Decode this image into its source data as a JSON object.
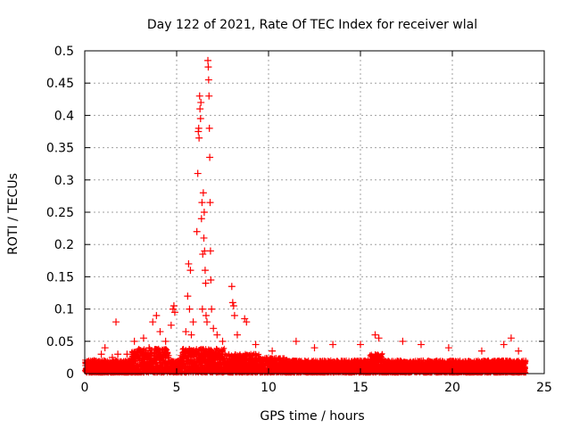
{
  "chart_data": {
    "type": "scatter",
    "title": "Day 122 of 2021, Rate Of TEC Index for receiver wlal",
    "xlabel": "GPS time / hours",
    "ylabel": "ROTI / TECUs",
    "xlim": [
      0,
      25
    ],
    "ylim": [
      0,
      0.5
    ],
    "xticks": [
      0,
      5,
      10,
      15,
      20,
      25
    ],
    "yticks": [
      0,
      0.05,
      0.1,
      0.15,
      0.2,
      0.25,
      0.3,
      0.35,
      0.4,
      0.45,
      0.5
    ],
    "xtick_labels": [
      "0",
      "5",
      "10",
      "15",
      "20",
      "25"
    ],
    "ytick_labels": [
      "0",
      "0.05",
      "0.1",
      "0.15",
      "0.2",
      "0.25",
      "0.3",
      "0.35",
      "0.4",
      "0.45",
      "0.5"
    ],
    "grid": true,
    "marker": "plus",
    "marker_color": "#ff0000",
    "background_band": {
      "x_range": [
        0,
        24
      ],
      "baseline_max": 0.02,
      "description": "dense band of points"
    },
    "series": [
      {
        "name": "ROTI",
        "points": [
          [
            0.2,
            0.015
          ],
          [
            0.5,
            0.02
          ],
          [
            0.9,
            0.03
          ],
          [
            1.1,
            0.04
          ],
          [
            1.5,
            0.025
          ],
          [
            1.7,
            0.08
          ],
          [
            1.8,
            0.03
          ],
          [
            2.3,
            0.03
          ],
          [
            2.7,
            0.05
          ],
          [
            3.2,
            0.055
          ],
          [
            3.5,
            0.04
          ],
          [
            3.7,
            0.08
          ],
          [
            3.9,
            0.09
          ],
          [
            4.1,
            0.065
          ],
          [
            4.4,
            0.05
          ],
          [
            4.7,
            0.075
          ],
          [
            4.8,
            0.1
          ],
          [
            4.85,
            0.105
          ],
          [
            4.9,
            0.095
          ],
          [
            5.5,
            0.065
          ],
          [
            5.6,
            0.12
          ],
          [
            5.65,
            0.17
          ],
          [
            5.7,
            0.1
          ],
          [
            5.75,
            0.16
          ],
          [
            5.8,
            0.06
          ],
          [
            5.9,
            0.08
          ],
          [
            6.1,
            0.22
          ],
          [
            6.15,
            0.31
          ],
          [
            6.18,
            0.375
          ],
          [
            6.2,
            0.38
          ],
          [
            6.22,
            0.365
          ],
          [
            6.25,
            0.43
          ],
          [
            6.27,
            0.41
          ],
          [
            6.3,
            0.395
          ],
          [
            6.32,
            0.42
          ],
          [
            6.35,
            0.24
          ],
          [
            6.38,
            0.265
          ],
          [
            6.4,
            0.1
          ],
          [
            6.42,
            0.185
          ],
          [
            6.45,
            0.28
          ],
          [
            6.48,
            0.21
          ],
          [
            6.5,
            0.25
          ],
          [
            6.52,
            0.19
          ],
          [
            6.55,
            0.16
          ],
          [
            6.58,
            0.14
          ],
          [
            6.6,
            0.09
          ],
          [
            6.65,
            0.08
          ],
          [
            6.7,
            0.485
          ],
          [
            6.72,
            0.475
          ],
          [
            6.74,
            0.455
          ],
          [
            6.76,
            0.43
          ],
          [
            6.78,
            0.38
          ],
          [
            6.8,
            0.335
          ],
          [
            6.82,
            0.265
          ],
          [
            6.84,
            0.19
          ],
          [
            6.86,
            0.145
          ],
          [
            6.9,
            0.1
          ],
          [
            7.0,
            0.07
          ],
          [
            7.2,
            0.06
          ],
          [
            7.5,
            0.05
          ],
          [
            8.0,
            0.135
          ],
          [
            8.05,
            0.11
          ],
          [
            8.1,
            0.105
          ],
          [
            8.15,
            0.09
          ],
          [
            8.3,
            0.06
          ],
          [
            8.7,
            0.085
          ],
          [
            8.8,
            0.08
          ],
          [
            9.3,
            0.045
          ],
          [
            10.2,
            0.035
          ],
          [
            11.5,
            0.05
          ],
          [
            12.5,
            0.04
          ],
          [
            13.5,
            0.045
          ],
          [
            15.0,
            0.045
          ],
          [
            15.8,
            0.06
          ],
          [
            16.0,
            0.055
          ],
          [
            17.3,
            0.05
          ],
          [
            18.3,
            0.045
          ],
          [
            19.8,
            0.04
          ],
          [
            21.6,
            0.035
          ],
          [
            22.8,
            0.045
          ],
          [
            23.2,
            0.055
          ],
          [
            23.6,
            0.035
          ]
        ]
      }
    ]
  }
}
